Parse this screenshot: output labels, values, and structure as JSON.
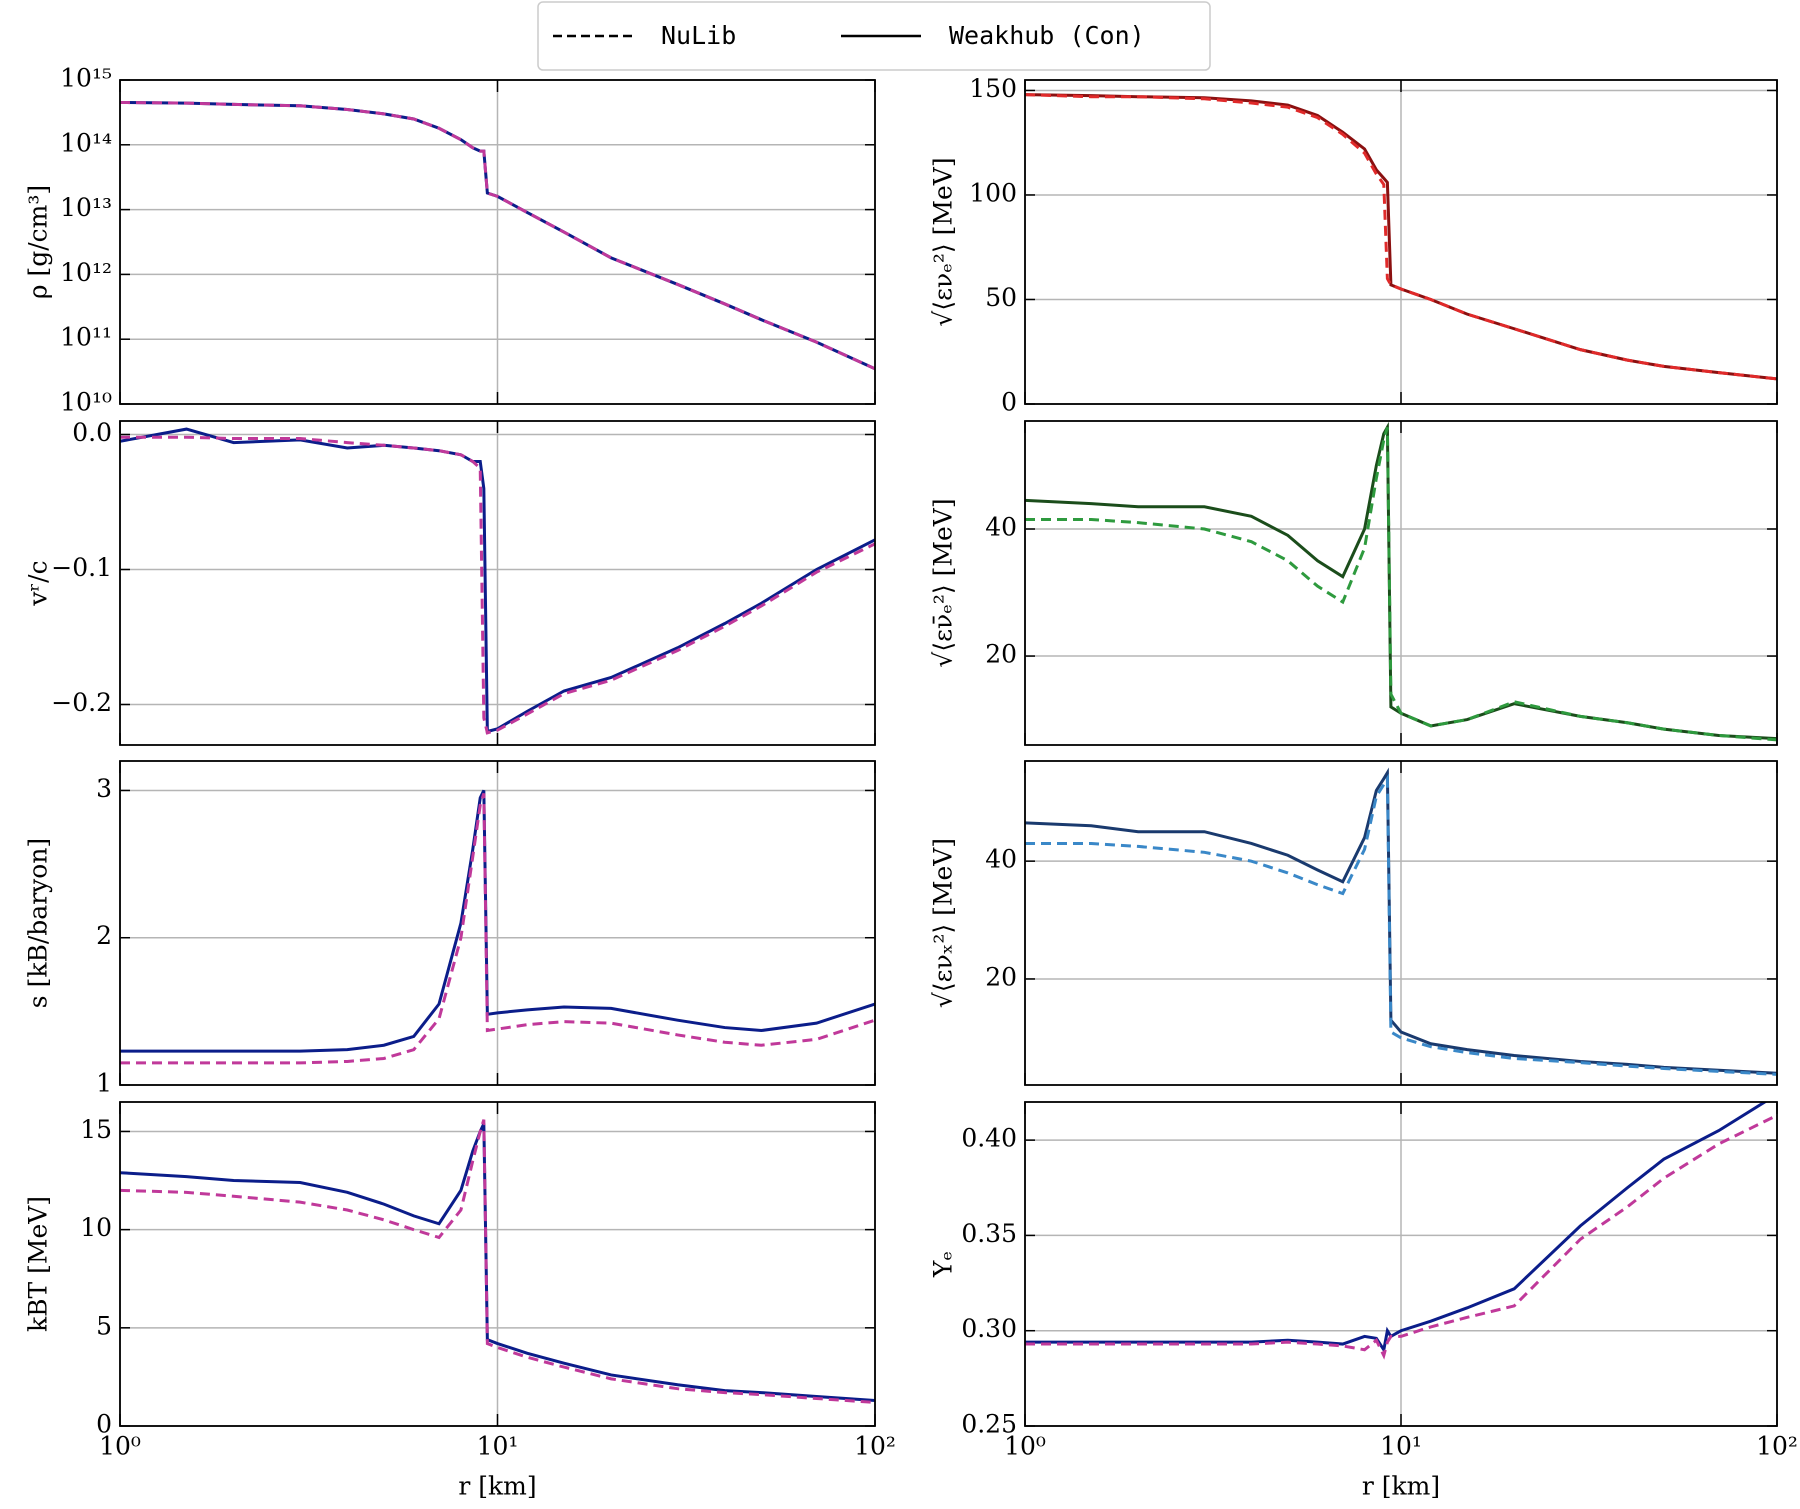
{
  "legend": [
    {
      "name": "NuLib",
      "style": "dashed"
    },
    {
      "name": "Weakhub (Con)",
      "style": "solid"
    }
  ],
  "chart_data": [
    {
      "type": "line",
      "ylabel": "ρ [g/cm³]",
      "xscale": "log",
      "yscale": "log",
      "grid": true,
      "xlim": [
        1,
        100
      ],
      "xticks": [
        1,
        10,
        100
      ],
      "ylim": [
        10000000000.0,
        1000000000000000.0
      ],
      "yticks": [
        {
          "value": 10000000000.0,
          "label": "10¹⁰"
        },
        {
          "value": 100000000000.0,
          "label": "10¹¹"
        },
        {
          "value": 1000000000000.0,
          "label": "10¹²"
        },
        {
          "value": 10000000000000.0,
          "label": "10¹³"
        },
        {
          "value": 100000000000000.0,
          "label": "10¹⁴"
        },
        {
          "value": 1000000000000000.0,
          "label": "10¹⁵"
        }
      ],
      "x": [
        1,
        1.5,
        2,
        3,
        4,
        5,
        6,
        7,
        8,
        8.6,
        9.0,
        9.2,
        9.4,
        10,
        12,
        15,
        20,
        30,
        40,
        50,
        70,
        100
      ],
      "series": [
        {
          "style": "solid",
          "color": "#0b1d8a",
          "values": [
            450000000000000.0,
            440000000000000.0,
            420000000000000.0,
            400000000000000.0,
            350000000000000.0,
            300000000000000.0,
            250000000000000.0,
            180000000000000.0,
            120000000000000.0,
            90000000000000.0,
            80000000000000.0,
            80000000000000.0,
            18000000000000.0,
            16000000000000.0,
            9000000000000.0,
            4500000000000.0,
            1800000000000.0,
            700000000000.0,
            350000000000.0,
            200000000000.0,
            90000000000.0,
            35000000000.0
          ]
        },
        {
          "style": "dashed",
          "color": "#c0399a",
          "values": [
            450000000000000.0,
            440000000000000.0,
            420000000000000.0,
            400000000000000.0,
            350000000000000.0,
            300000000000000.0,
            250000000000000.0,
            180000000000000.0,
            120000000000000.0,
            90000000000000.0,
            80000000000000.0,
            80000000000000.0,
            18000000000000.0,
            16000000000000.0,
            9000000000000.0,
            4500000000000.0,
            1800000000000.0,
            700000000000.0,
            350000000000.0,
            200000000000.0,
            90000000000.0,
            35000000000.0
          ]
        }
      ]
    },
    {
      "type": "line",
      "ylabel": "√⟨ενₑ²⟩ [MeV]",
      "xscale": "log",
      "grid": true,
      "xlim": [
        1,
        100
      ],
      "xticks": [
        1,
        10,
        100
      ],
      "ylim": [
        0,
        155
      ],
      "yticks": [
        0,
        50,
        100,
        150
      ],
      "x": [
        1,
        1.5,
        2,
        3,
        4,
        5,
        6,
        7,
        8,
        8.6,
        9.0,
        9.2,
        9.4,
        10,
        12,
        15,
        20,
        30,
        40,
        50,
        70,
        100
      ],
      "series": [
        {
          "style": "solid",
          "color": "#8b1010",
          "values": [
            148,
            147.5,
            147,
            146.5,
            145,
            143,
            138,
            130,
            122,
            112,
            108,
            106,
            57,
            55,
            50,
            43,
            36,
            26,
            21,
            18,
            15,
            12
          ]
        },
        {
          "style": "dashed",
          "color": "#e02a2a",
          "values": [
            148,
            147,
            147,
            146,
            144,
            142,
            137,
            129,
            120,
            110,
            105,
            60,
            57,
            55,
            50,
            43,
            36,
            26,
            21,
            18,
            15,
            12
          ]
        }
      ]
    },
    {
      "type": "line",
      "ylabel": "vʳ/c",
      "xscale": "log",
      "grid": true,
      "xlim": [
        1,
        100
      ],
      "xticks": [
        1,
        10,
        100
      ],
      "ylim": [
        -0.23,
        0.01
      ],
      "yticks": [
        {
          "value": -0.2,
          "label": "−0.2"
        },
        {
          "value": -0.1,
          "label": "−0.1"
        },
        {
          "value": 0,
          "label": "0.0"
        }
      ],
      "x": [
        1,
        1.5,
        2,
        3,
        4,
        5,
        6,
        7,
        8,
        8.6,
        9.0,
        9.2,
        9.4,
        10,
        12,
        15,
        20,
        30,
        40,
        50,
        70,
        100
      ],
      "series": [
        {
          "style": "solid",
          "color": "#0b1d8a",
          "values": [
            -0.005,
            0.004,
            -0.006,
            -0.004,
            -0.01,
            -0.008,
            -0.01,
            -0.012,
            -0.015,
            -0.02,
            -0.02,
            -0.04,
            -0.22,
            -0.218,
            -0.205,
            -0.19,
            -0.18,
            -0.158,
            -0.14,
            -0.125,
            -0.1,
            -0.078
          ]
        },
        {
          "style": "dashed",
          "color": "#c0399a",
          "values": [
            -0.002,
            -0.002,
            -0.003,
            -0.003,
            -0.006,
            -0.008,
            -0.01,
            -0.012,
            -0.015,
            -0.02,
            -0.025,
            -0.21,
            -0.221,
            -0.219,
            -0.207,
            -0.192,
            -0.182,
            -0.16,
            -0.142,
            -0.127,
            -0.102,
            -0.081
          ]
        }
      ]
    },
    {
      "type": "line",
      "ylabel": "√⟨εν̄ₑ²⟩ [MeV]",
      "xscale": "log",
      "grid": true,
      "xlim": [
        1,
        100
      ],
      "xticks": [
        1,
        10,
        100
      ],
      "ylim": [
        6,
        57
      ],
      "yticks": [
        20,
        40
      ],
      "x": [
        1,
        1.5,
        2,
        3,
        4,
        5,
        6,
        7,
        8,
        8.6,
        9.0,
        9.2,
        9.4,
        10,
        12,
        15,
        20,
        30,
        40,
        50,
        70,
        100
      ],
      "series": [
        {
          "style": "solid",
          "color": "#1b4d1b",
          "values": [
            44.5,
            44,
            43.5,
            43.5,
            42,
            39,
            35,
            32.5,
            40,
            50,
            55,
            56,
            12,
            11,
            9,
            10,
            12.5,
            10.5,
            9.5,
            8.5,
            7.5,
            7
          ]
        },
        {
          "style": "dashed",
          "color": "#2e9a3e",
          "values": [
            41.5,
            41.5,
            41,
            40,
            38,
            35,
            31,
            28.5,
            37,
            48,
            54,
            56,
            14,
            11,
            9,
            10,
            12.8,
            10.5,
            9.5,
            8.5,
            7.5,
            6.8
          ]
        }
      ]
    },
    {
      "type": "line",
      "ylabel": "s [kB/baryon]",
      "xscale": "log",
      "grid": true,
      "xlim": [
        1,
        100
      ],
      "xticks": [
        1,
        10,
        100
      ],
      "ylim": [
        1,
        3.2
      ],
      "yticks": [
        1,
        2,
        3
      ],
      "x": [
        1,
        1.5,
        2,
        3,
        4,
        5,
        6,
        7,
        8,
        8.6,
        9.0,
        9.2,
        9.4,
        10,
        12,
        15,
        20,
        30,
        40,
        50,
        70,
        100
      ],
      "series": [
        {
          "style": "solid",
          "color": "#0b1d8a",
          "values": [
            1.23,
            1.23,
            1.23,
            1.23,
            1.24,
            1.27,
            1.33,
            1.55,
            2.1,
            2.6,
            2.95,
            3.0,
            1.48,
            1.49,
            1.51,
            1.53,
            1.52,
            1.44,
            1.39,
            1.37,
            1.42,
            1.55
          ]
        },
        {
          "style": "dashed",
          "color": "#c0399a",
          "values": [
            1.15,
            1.15,
            1.15,
            1.15,
            1.16,
            1.18,
            1.24,
            1.45,
            2.0,
            2.55,
            2.9,
            2.98,
            1.37,
            1.38,
            1.41,
            1.43,
            1.42,
            1.34,
            1.29,
            1.27,
            1.31,
            1.44
          ]
        }
      ]
    },
    {
      "type": "line",
      "ylabel": "√⟨ενₓ²⟩ [MeV]",
      "xscale": "log",
      "grid": true,
      "xlim": [
        1,
        100
      ],
      "xticks": [
        1,
        10,
        100
      ],
      "ylim": [
        2,
        57
      ],
      "yticks": [
        20,
        40
      ],
      "x": [
        1,
        1.5,
        2,
        3,
        4,
        5,
        6,
        7,
        8,
        8.6,
        9.0,
        9.2,
        9.4,
        10,
        12,
        15,
        20,
        30,
        40,
        50,
        70,
        100
      ],
      "series": [
        {
          "style": "solid",
          "color": "#1a3a6e",
          "values": [
            46.5,
            46,
            45,
            45,
            43,
            41,
            38.5,
            36.5,
            44,
            52,
            54,
            55,
            13,
            11,
            9,
            8,
            7,
            6,
            5.5,
            5,
            4.5,
            4
          ]
        },
        {
          "style": "dashed",
          "color": "#3a88c8",
          "values": [
            43,
            43,
            42.5,
            41.5,
            40,
            38,
            36,
            34.5,
            42,
            51,
            53,
            54,
            11,
            10,
            8.5,
            7.5,
            6.5,
            5.8,
            5.2,
            4.8,
            4.3,
            3.8
          ]
        }
      ]
    },
    {
      "type": "line",
      "ylabel": "kBT [MeV]",
      "xlabel": "r [km]",
      "xscale": "log",
      "grid": true,
      "xlim": [
        1,
        100
      ],
      "xticks": [
        {
          "value": 1,
          "label": "10⁰"
        },
        {
          "value": 10,
          "label": "10¹"
        },
        {
          "value": 100,
          "label": "10²"
        }
      ],
      "ylim": [
        0,
        16.5
      ],
      "yticks": [
        0,
        5,
        10,
        15
      ],
      "x": [
        1,
        1.5,
        2,
        3,
        4,
        5,
        6,
        7,
        8,
        8.6,
        9.0,
        9.2,
        9.4,
        10,
        12,
        15,
        20,
        30,
        40,
        50,
        70,
        100
      ],
      "series": [
        {
          "style": "solid",
          "color": "#0b1d8a",
          "values": [
            12.9,
            12.7,
            12.5,
            12.4,
            11.9,
            11.3,
            10.7,
            10.3,
            12.0,
            14.0,
            15.0,
            15.4,
            4.4,
            4.2,
            3.7,
            3.2,
            2.6,
            2.1,
            1.8,
            1.7,
            1.5,
            1.3
          ]
        },
        {
          "style": "dashed",
          "color": "#c0399a",
          "values": [
            12.0,
            11.9,
            11.7,
            11.4,
            11.0,
            10.5,
            10.0,
            9.6,
            11.0,
            13.5,
            15.0,
            15.6,
            4.2,
            4.0,
            3.5,
            3.0,
            2.4,
            1.9,
            1.7,
            1.6,
            1.4,
            1.2
          ]
        }
      ]
    },
    {
      "type": "line",
      "ylabel": "Yₑ",
      "xlabel": "r [km]",
      "xscale": "log",
      "grid": true,
      "xlim": [
        1,
        100
      ],
      "xticks": [
        {
          "value": 1,
          "label": "10⁰"
        },
        {
          "value": 10,
          "label": "10¹"
        },
        {
          "value": 100,
          "label": "10²"
        }
      ],
      "ylim": [
        0.25,
        0.42
      ],
      "yticks": [
        0.25,
        {
          "value": 0.3,
          "label": "0.30"
        },
        0.35,
        {
          "value": 0.4,
          "label": "0.40"
        }
      ],
      "x": [
        1,
        1.5,
        2,
        3,
        4,
        5,
        6,
        7,
        8,
        8.6,
        9.0,
        9.2,
        9.4,
        10,
        12,
        15,
        20,
        30,
        40,
        50,
        70,
        100
      ],
      "series": [
        {
          "style": "solid",
          "color": "#0b1d8a",
          "values": [
            0.294,
            0.294,
            0.294,
            0.294,
            0.294,
            0.295,
            0.294,
            0.293,
            0.297,
            0.296,
            0.29,
            0.3,
            0.297,
            0.3,
            0.305,
            0.312,
            0.322,
            0.355,
            0.375,
            0.39,
            0.405,
            0.424
          ]
        },
        {
          "style": "dashed",
          "color": "#c0399a",
          "values": [
            0.293,
            0.293,
            0.293,
            0.293,
            0.293,
            0.294,
            0.293,
            0.292,
            0.29,
            0.295,
            0.287,
            0.294,
            0.297,
            0.297,
            0.302,
            0.307,
            0.313,
            0.348,
            0.365,
            0.38,
            0.398,
            0.413
          ]
        }
      ]
    }
  ]
}
